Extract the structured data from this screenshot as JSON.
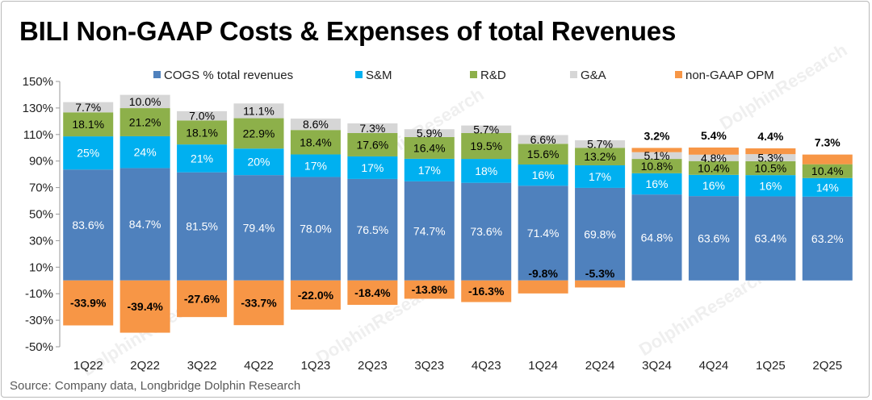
{
  "page": {
    "title": "BILI Non-GAAP Costs & Expenses of total Revenues",
    "source": "Source: Company data, Longbridge Dolphin Research",
    "watermark": "DolphinResearch"
  },
  "chart_data": {
    "type": "bar",
    "stacked": true,
    "categories": [
      "1Q22",
      "2Q22",
      "3Q22",
      "4Q22",
      "1Q23",
      "2Q23",
      "3Q23",
      "4Q23",
      "1Q24",
      "2Q24",
      "3Q24",
      "4Q24",
      "1Q25",
      "2Q25"
    ],
    "ylim": [
      -50,
      150
    ],
    "yticks": [
      -50,
      -30,
      -10,
      10,
      30,
      50,
      70,
      90,
      110,
      130,
      150
    ],
    "ytick_labels": [
      "-50%",
      "-30%",
      "-10%",
      "10%",
      "30%",
      "50%",
      "70%",
      "90%",
      "110%",
      "130%",
      "150%"
    ],
    "legend_position": "top",
    "grid": false,
    "series": [
      {
        "name": "COGS % total revenues",
        "color": "#4f81bd",
        "values": [
          83.6,
          84.7,
          81.5,
          79.4,
          78.0,
          76.5,
          74.7,
          73.6,
          71.4,
          69.8,
          64.8,
          63.6,
          63.4,
          63.2
        ],
        "labels": [
          "83.6%",
          "84.7%",
          "81.5%",
          "79.4%",
          "78.0%",
          "76.5%",
          "74.7%",
          "73.6%",
          "71.4%",
          "69.8%",
          "64.8%",
          "63.6%",
          "63.4%",
          "63.2%"
        ]
      },
      {
        "name": "S&M",
        "color": "#00b0f0",
        "values": [
          25,
          24,
          21,
          20,
          17,
          17,
          17,
          18,
          16,
          17,
          16,
          16,
          16,
          14
        ],
        "labels": [
          "25%",
          "24%",
          "21%",
          "20%",
          "17%",
          "17%",
          "17%",
          "18%",
          "16%",
          "17%",
          "16%",
          "16%",
          "16%",
          "14%"
        ]
      },
      {
        "name": "R&D",
        "color": "#8db04a",
        "values": [
          18.1,
          21.2,
          18.1,
          22.9,
          18.4,
          17.6,
          16.4,
          19.5,
          15.6,
          13.2,
          10.8,
          10.4,
          10.5,
          10.4
        ],
        "labels": [
          "18.1%",
          "21.2%",
          "18.1%",
          "22.9%",
          "18.4%",
          "17.6%",
          "16.4%",
          "19.5%",
          "15.6%",
          "13.2%",
          "10.8%",
          "10.4%",
          "10.5%",
          "10.4%"
        ]
      },
      {
        "name": "G&A",
        "color": "#d6d6d6",
        "values": [
          7.7,
          10.0,
          7.0,
          11.1,
          8.6,
          7.3,
          5.9,
          5.7,
          6.6,
          5.7,
          5.1,
          4.8,
          5.3,
          null
        ],
        "labels": [
          "7.7%",
          "10.0%",
          "7.0%",
          "11.1%",
          "8.6%",
          "7.3%",
          "5.9%",
          "5.7%",
          "6.6%",
          "5.7%",
          "5.1%",
          "4.8%",
          "5.3%",
          ""
        ]
      },
      {
        "name": "non-GAAP OPM",
        "color": "#f79646",
        "values": [
          -33.9,
          -39.4,
          -27.6,
          -33.7,
          -22.0,
          -18.4,
          -13.8,
          -16.3,
          -9.8,
          -5.3,
          3.2,
          5.4,
          4.4,
          7.3
        ],
        "labels": [
          "-33.9%",
          "-39.4%",
          "-27.6%",
          "-33.7%",
          "-22.0%",
          "-18.4%",
          "-13.8%",
          "-16.3%",
          "-9.8%",
          "-5.3%",
          "3.2%",
          "5.4%",
          "4.4%",
          "7.3%"
        ]
      }
    ]
  }
}
